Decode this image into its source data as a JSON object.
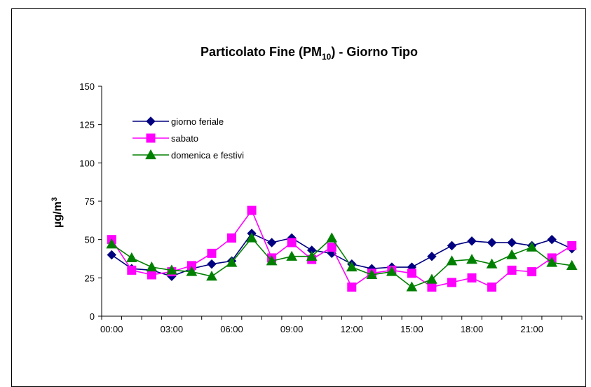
{
  "chart_data": {
    "type": "line",
    "title": "Particolato Fine (PM10) - Giorno Tipo",
    "title_parts": {
      "main": "Particolato Fine (PM",
      "sub": "10",
      "rest": ") - Giorno Tipo"
    },
    "ylabel": "µg/m3",
    "ylabel_parts": {
      "main": "µg/m",
      "sup": "3"
    },
    "xlabel": "",
    "ylim": [
      0,
      150
    ],
    "yticks": [
      "0",
      "25",
      "50",
      "75",
      "100",
      "125",
      "150"
    ],
    "x": [
      0,
      1,
      2,
      3,
      4,
      5,
      6,
      7,
      8,
      9,
      10,
      11,
      12,
      13,
      14,
      15,
      16,
      17,
      18,
      19,
      20,
      21,
      22,
      23
    ],
    "xtick_labels": [
      "00:00",
      "03:00",
      "06:00",
      "09:00",
      "12:00",
      "15:00",
      "18:00",
      "21:00"
    ],
    "grid": false,
    "legend_position": "top-left",
    "series": [
      {
        "name": "giorno feriale",
        "color": "#000080",
        "marker": "diamond",
        "values": [
          40,
          31,
          30,
          26,
          31,
          34,
          36,
          54,
          48,
          51,
          43,
          41,
          34,
          31,
          32,
          32,
          39,
          46,
          49,
          48,
          48,
          46,
          50,
          44
        ]
      },
      {
        "name": "sabato",
        "color": "#ff00ff",
        "marker": "square",
        "values": [
          50,
          30,
          27,
          29,
          33,
          41,
          51,
          69,
          38,
          48,
          37,
          45,
          19,
          28,
          30,
          28,
          19,
          22,
          25,
          19,
          30,
          29,
          38,
          46
        ]
      },
      {
        "name": "domenica e festivi",
        "color": "#008000",
        "marker": "triangle",
        "values": [
          47,
          38,
          32,
          30,
          29,
          26,
          35,
          51,
          36,
          39,
          39,
          51,
          32,
          27,
          29,
          19,
          24,
          36,
          37,
          34,
          40,
          45,
          35,
          33
        ]
      }
    ]
  }
}
